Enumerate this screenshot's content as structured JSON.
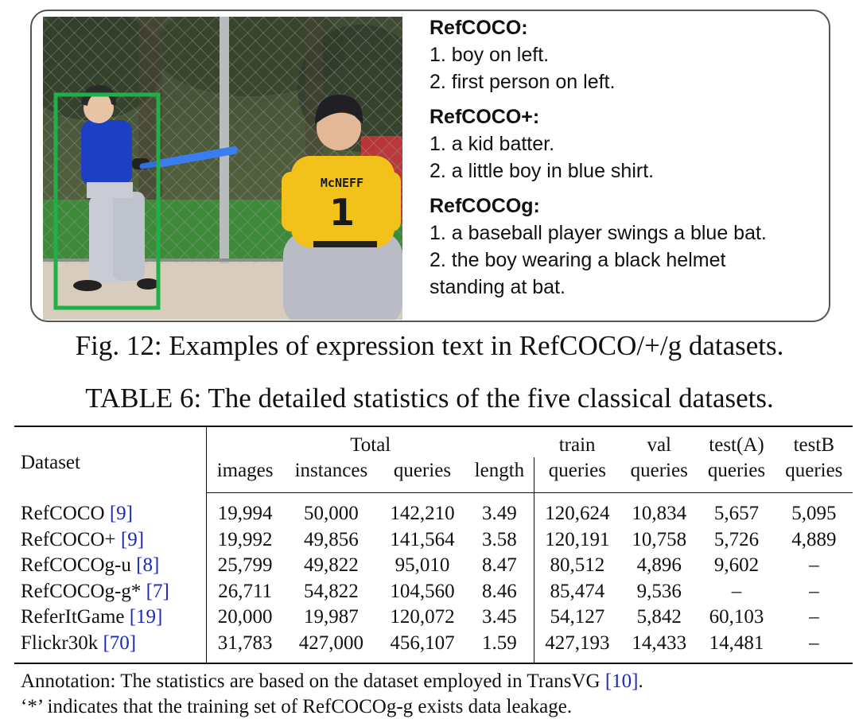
{
  "figure": {
    "expressions": [
      {
        "title": "RefCOCO:",
        "lines": [
          "1. boy on left.",
          "2. first person on left."
        ]
      },
      {
        "title": "RefCOCO+:",
        "lines": [
          "1. a kid batter.",
          "2. a little boy in blue shirt."
        ]
      },
      {
        "title": "RefCOCOg:",
        "lines": [
          "1. a baseball player swings a blue bat.",
          "2. the boy wearing a black helmet",
          "standing at bat."
        ]
      }
    ],
    "jersey_name": "McNEFF",
    "jersey_number": "1",
    "colors": {
      "bbox": "#1fb04a",
      "batter_shirt": "#1d3fc4",
      "catcher_shirt": "#f3c21a",
      "bat": "#2f6fe0"
    },
    "caption": "Fig. 12: Examples of expression text in RefCOCO/+/g datasets."
  },
  "table": {
    "caption": "TABLE 6: The detailed statistics of the five classical datasets.",
    "header": {
      "dataset": "Dataset",
      "total": "Total",
      "train": "train",
      "val": "val",
      "testA": "test(A)",
      "testB": "testB",
      "sub": [
        "images",
        "instances",
        "queries",
        "length",
        "queries",
        "queries",
        "queries",
        "queries"
      ]
    },
    "rows": [
      {
        "name": "RefCOCO ",
        "cite": "[9]",
        "cells": [
          "19,994",
          "50,000",
          "142,210",
          "3.49",
          "120,624",
          "10,834",
          "5,657",
          "5,095"
        ]
      },
      {
        "name": "RefCOCO+ ",
        "cite": "[9]",
        "cells": [
          "19,992",
          "49,856",
          "141,564",
          "3.58",
          "120,191",
          "10,758",
          "5,726",
          "4,889"
        ]
      },
      {
        "name": "RefCOCOg-u ",
        "cite": "[8]",
        "cells": [
          "25,799",
          "49,822",
          "95,010",
          "8.47",
          "80,512",
          "4,896",
          "9,602",
          "–"
        ]
      },
      {
        "name": "RefCOCOg-g* ",
        "cite": "[7]",
        "cells": [
          "26,711",
          "54,822",
          "104,560",
          "8.46",
          "85,474",
          "9,536",
          "–",
          "–"
        ]
      },
      {
        "name": "ReferItGame ",
        "cite": "[19]",
        "cells": [
          "20,000",
          "19,987",
          "120,072",
          "3.45",
          "54,127",
          "5,842",
          "60,103",
          "–"
        ]
      },
      {
        "name": "Flickr30k ",
        "cite": "[70]",
        "cells": [
          "31,783",
          "427,000",
          "456,107",
          "1.59",
          "427,193",
          "14,433",
          "14,481",
          "–"
        ]
      }
    ],
    "annotation_line1_prefix": "Annotation: The statistics are based on the dataset employed in TransVG ",
    "annotation_cite": "[10]",
    "annotation_line1_suffix": ".",
    "annotation_line2": "‘*’ indicates that the training set of RefCOCOg-g exists data leakage."
  }
}
